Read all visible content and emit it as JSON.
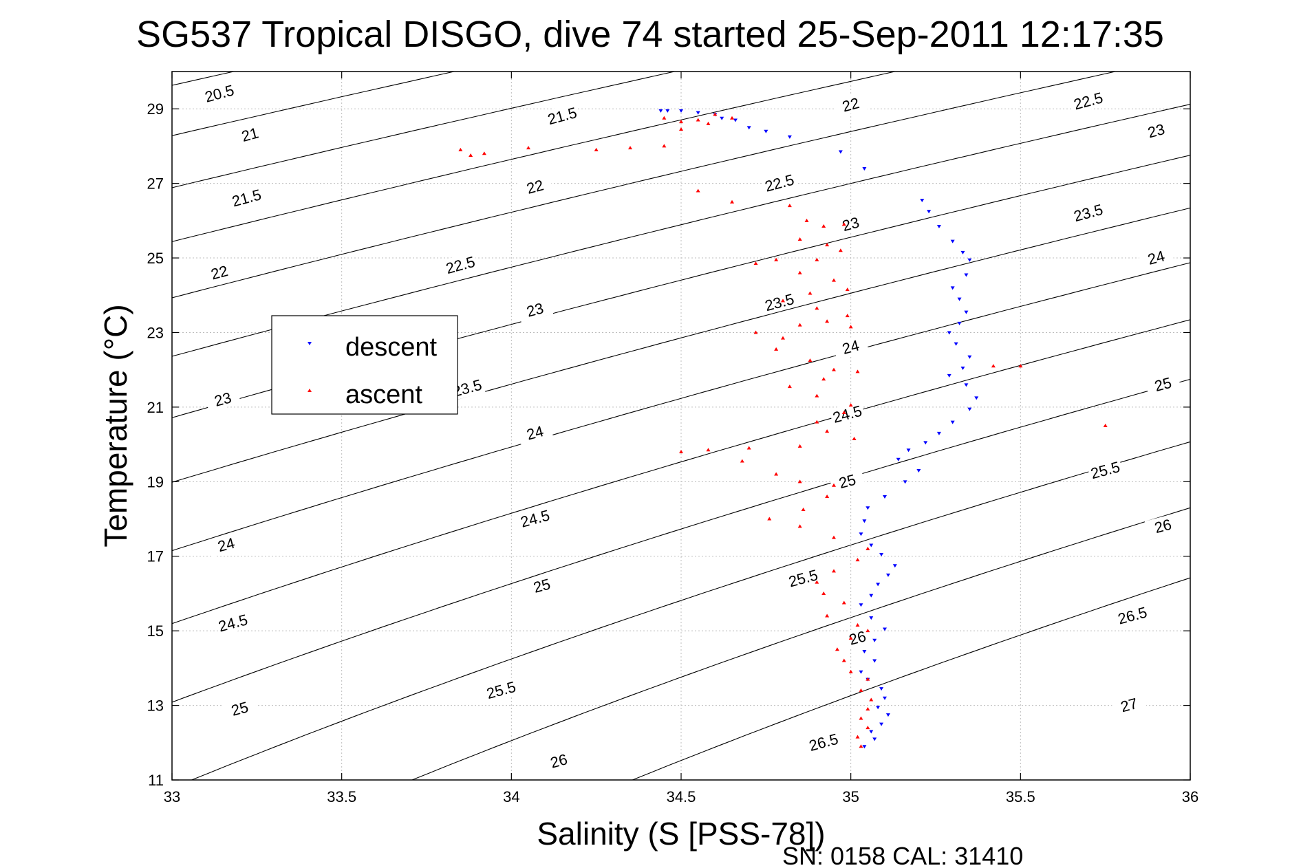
{
  "chart_data": {
    "type": "scatter",
    "title": "SG537 Tropical DISGO, dive 74 started 25-Sep-2011 12:17:35",
    "xlabel": "Salinity (S [PSS-78])",
    "ylabel": "Temperature (°C)",
    "footer": "SN: 0158  CAL: 31410",
    "xlim": [
      33,
      36
    ],
    "ylim": [
      11,
      30
    ],
    "xticks": [
      33,
      33.5,
      34,
      34.5,
      35,
      35.5,
      36
    ],
    "xtick_labels": [
      "33",
      "33.5",
      "34",
      "34.5",
      "35",
      "35.5",
      "36"
    ],
    "yticks": [
      11,
      13,
      15,
      17,
      19,
      21,
      23,
      25,
      27,
      29
    ],
    "ytick_labels": [
      "11",
      "13",
      "15",
      "17",
      "19",
      "21",
      "23",
      "25",
      "27",
      "29"
    ],
    "grid": true,
    "legend_position": "center-left",
    "contour_levels": [
      {
        "level": 20.5,
        "label": "20.5"
      },
      {
        "level": 21,
        "label": "21"
      },
      {
        "level": 21.5,
        "label": "21.5"
      },
      {
        "level": 22,
        "label": "22"
      },
      {
        "level": 22.5,
        "label": "22.5"
      },
      {
        "level": 23,
        "label": "23"
      },
      {
        "level": 23.5,
        "label": "23.5"
      },
      {
        "level": 24,
        "label": "24"
      },
      {
        "level": 24.5,
        "label": "24.5"
      },
      {
        "level": 25,
        "label": "25"
      },
      {
        "level": 25.5,
        "label": "25.5"
      },
      {
        "level": 26,
        "label": "26"
      },
      {
        "level": 26.5,
        "label": "26.5"
      },
      {
        "level": 27,
        "label": "27"
      }
    ],
    "contour_label_positions": [
      {
        "text": "20.5",
        "x": 33.14,
        "y": 29.4
      },
      {
        "text": "21.5",
        "x": 34.15,
        "y": 28.8
      },
      {
        "text": "22",
        "x": 35.0,
        "y": 29.1
      },
      {
        "text": "22.5",
        "x": 35.7,
        "y": 29.2
      },
      {
        "text": "21",
        "x": 33.23,
        "y": 28.3
      },
      {
        "text": "23",
        "x": 35.9,
        "y": 28.4
      },
      {
        "text": "21.5",
        "x": 33.22,
        "y": 26.6
      },
      {
        "text": "22",
        "x": 34.07,
        "y": 26.9
      },
      {
        "text": "22.5",
        "x": 34.79,
        "y": 27.0
      },
      {
        "text": "23.5",
        "x": 35.7,
        "y": 26.2
      },
      {
        "text": "22",
        "x": 33.14,
        "y": 24.6
      },
      {
        "text": "22.5",
        "x": 33.85,
        "y": 24.8
      },
      {
        "text": "23",
        "x": 35.0,
        "y": 25.9
      },
      {
        "text": "24",
        "x": 35.9,
        "y": 25.0
      },
      {
        "text": "23",
        "x": 34.07,
        "y": 23.6
      },
      {
        "text": "23.5",
        "x": 34.79,
        "y": 23.8
      },
      {
        "text": "24",
        "x": 35.0,
        "y": 22.6
      },
      {
        "text": "23",
        "x": 33.15,
        "y": 21.2
      },
      {
        "text": "23.5",
        "x": 33.87,
        "y": 21.5
      },
      {
        "text": "25",
        "x": 35.92,
        "y": 21.6
      },
      {
        "text": "24.5",
        "x": 34.99,
        "y": 20.8
      },
      {
        "text": "24",
        "x": 34.07,
        "y": 20.3
      },
      {
        "text": "25",
        "x": 34.99,
        "y": 19.0
      },
      {
        "text": "25.5",
        "x": 35.75,
        "y": 19.3
      },
      {
        "text": "24.5",
        "x": 34.07,
        "y": 18.0
      },
      {
        "text": "24",
        "x": 33.16,
        "y": 17.3
      },
      {
        "text": "26",
        "x": 35.92,
        "y": 17.8
      },
      {
        "text": "25.5",
        "x": 34.86,
        "y": 16.4
      },
      {
        "text": "25",
        "x": 34.09,
        "y": 16.2
      },
      {
        "text": "24.5",
        "x": 33.18,
        "y": 15.2
      },
      {
        "text": "26.5",
        "x": 35.83,
        "y": 15.4
      },
      {
        "text": "26",
        "x": 35.02,
        "y": 14.8
      },
      {
        "text": "25.5",
        "x": 33.97,
        "y": 13.4
      },
      {
        "text": "25",
        "x": 33.2,
        "y": 12.9
      },
      {
        "text": "27",
        "x": 35.82,
        "y": 13.0
      },
      {
        "text": "26.5",
        "x": 34.92,
        "y": 12.0
      },
      {
        "text": "26",
        "x": 34.14,
        "y": 11.5
      }
    ],
    "series": [
      {
        "name": "descent",
        "color": "#0000ff",
        "marker": "triangle-down",
        "points": [
          [
            34.44,
            28.95
          ],
          [
            34.46,
            28.95
          ],
          [
            34.5,
            28.95
          ],
          [
            34.55,
            28.9
          ],
          [
            34.6,
            28.85
          ],
          [
            34.62,
            28.75
          ],
          [
            34.66,
            28.7
          ],
          [
            34.7,
            28.5
          ],
          [
            34.75,
            28.4
          ],
          [
            34.82,
            28.25
          ],
          [
            34.97,
            27.85
          ],
          [
            35.04,
            27.4
          ],
          [
            35.21,
            26.55
          ],
          [
            35.23,
            26.25
          ],
          [
            35.26,
            25.85
          ],
          [
            35.3,
            25.45
          ],
          [
            35.33,
            25.15
          ],
          [
            35.35,
            24.95
          ],
          [
            35.34,
            24.55
          ],
          [
            35.3,
            24.2
          ],
          [
            35.32,
            23.9
          ],
          [
            35.34,
            23.55
          ],
          [
            35.32,
            23.25
          ],
          [
            35.29,
            23.0
          ],
          [
            35.31,
            22.7
          ],
          [
            35.35,
            22.35
          ],
          [
            35.33,
            22.05
          ],
          [
            35.29,
            21.85
          ],
          [
            35.34,
            21.6
          ],
          [
            35.37,
            21.25
          ],
          [
            35.35,
            20.95
          ],
          [
            35.3,
            20.6
          ],
          [
            35.26,
            20.3
          ],
          [
            35.22,
            20.05
          ],
          [
            35.17,
            19.85
          ],
          [
            35.14,
            19.6
          ],
          [
            35.2,
            19.3
          ],
          [
            35.16,
            19.0
          ],
          [
            35.1,
            18.6
          ],
          [
            35.05,
            18.3
          ],
          [
            35.04,
            17.95
          ],
          [
            35.03,
            17.6
          ],
          [
            35.06,
            17.3
          ],
          [
            35.09,
            17.05
          ],
          [
            35.13,
            16.75
          ],
          [
            35.11,
            16.5
          ],
          [
            35.08,
            16.25
          ],
          [
            35.06,
            15.95
          ],
          [
            35.03,
            15.7
          ],
          [
            35.06,
            15.35
          ],
          [
            35.1,
            15.05
          ],
          [
            35.07,
            14.75
          ],
          [
            35.04,
            14.45
          ],
          [
            35.07,
            14.2
          ],
          [
            35.03,
            13.9
          ],
          [
            35.05,
            13.7
          ],
          [
            35.09,
            13.45
          ],
          [
            35.1,
            13.2
          ],
          [
            35.08,
            12.95
          ],
          [
            35.11,
            12.75
          ],
          [
            35.09,
            12.5
          ],
          [
            35.06,
            12.3
          ],
          [
            35.07,
            12.1
          ],
          [
            35.04,
            11.9
          ]
        ]
      },
      {
        "name": "ascent",
        "color": "#ff0000",
        "marker": "triangle-up",
        "points": [
          [
            33.85,
            27.9
          ],
          [
            33.88,
            27.75
          ],
          [
            33.92,
            27.8
          ],
          [
            34.05,
            27.95
          ],
          [
            34.25,
            27.9
          ],
          [
            34.35,
            27.95
          ],
          [
            34.45,
            28.0
          ],
          [
            34.5,
            28.45
          ],
          [
            34.55,
            28.7
          ],
          [
            34.6,
            28.85
          ],
          [
            34.65,
            28.75
          ],
          [
            34.58,
            28.6
          ],
          [
            34.5,
            28.65
          ],
          [
            34.45,
            28.75
          ],
          [
            34.55,
            26.8
          ],
          [
            34.65,
            26.5
          ],
          [
            34.82,
            26.4
          ],
          [
            34.87,
            26.0
          ],
          [
            34.92,
            25.85
          ],
          [
            34.98,
            25.9
          ],
          [
            34.85,
            25.5
          ],
          [
            34.93,
            25.35
          ],
          [
            34.97,
            25.2
          ],
          [
            34.9,
            24.95
          ],
          [
            34.78,
            24.95
          ],
          [
            34.72,
            24.85
          ],
          [
            34.85,
            24.6
          ],
          [
            34.95,
            24.4
          ],
          [
            34.99,
            24.15
          ],
          [
            34.88,
            24.05
          ],
          [
            34.8,
            23.85
          ],
          [
            34.9,
            23.65
          ],
          [
            34.99,
            23.45
          ],
          [
            34.93,
            23.3
          ],
          [
            34.85,
            23.2
          ],
          [
            35.0,
            23.15
          ],
          [
            34.8,
            22.85
          ],
          [
            34.72,
            23.0
          ],
          [
            34.78,
            22.55
          ],
          [
            34.88,
            22.25
          ],
          [
            34.95,
            22.0
          ],
          [
            35.02,
            21.95
          ],
          [
            34.92,
            21.75
          ],
          [
            34.82,
            21.55
          ],
          [
            34.9,
            21.3
          ],
          [
            35.0,
            21.05
          ],
          [
            34.98,
            20.85
          ],
          [
            34.9,
            20.6
          ],
          [
            34.93,
            20.35
          ],
          [
            35.01,
            20.15
          ],
          [
            34.85,
            19.95
          ],
          [
            34.7,
            19.9
          ],
          [
            34.58,
            19.85
          ],
          [
            34.5,
            19.8
          ],
          [
            34.68,
            19.55
          ],
          [
            34.78,
            19.2
          ],
          [
            34.85,
            19.0
          ],
          [
            34.95,
            18.9
          ],
          [
            34.93,
            18.6
          ],
          [
            34.86,
            18.25
          ],
          [
            34.76,
            18.0
          ],
          [
            34.85,
            17.8
          ],
          [
            34.95,
            17.5
          ],
          [
            35.05,
            17.2
          ],
          [
            35.02,
            16.9
          ],
          [
            34.95,
            16.6
          ],
          [
            34.9,
            16.3
          ],
          [
            34.92,
            16.0
          ],
          [
            34.98,
            15.75
          ],
          [
            34.93,
            15.4
          ],
          [
            35.02,
            15.15
          ],
          [
            35.05,
            15.0
          ],
          [
            35.0,
            14.8
          ],
          [
            34.96,
            14.5
          ],
          [
            34.98,
            14.2
          ],
          [
            35.0,
            13.9
          ],
          [
            35.05,
            13.7
          ],
          [
            35.03,
            13.4
          ],
          [
            35.06,
            13.15
          ],
          [
            35.05,
            12.9
          ],
          [
            35.03,
            12.65
          ],
          [
            35.05,
            12.4
          ],
          [
            35.02,
            12.15
          ],
          [
            35.03,
            11.9
          ],
          [
            35.75,
            20.5
          ],
          [
            35.5,
            22.1
          ],
          [
            35.42,
            22.1
          ]
        ]
      }
    ]
  }
}
